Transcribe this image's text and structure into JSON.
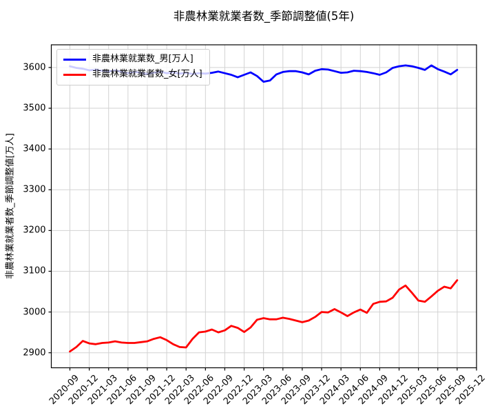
{
  "figure": {
    "background": "#ffffff",
    "grid_color": "#d2d2d2",
    "spine_color": "#000000",
    "legend_border_color": "#cccccc"
  },
  "chart_data": {
    "type": "line",
    "title": "非農林業就業者数_季節調整値(5年)",
    "ylabel": "非農林業就業者数_季節調整値[万人]",
    "xlabel": "",
    "grid": true,
    "legend_position": "upper left",
    "ylim": [
      2863,
      3656
    ],
    "y_ticks": [
      2900,
      3000,
      3100,
      3200,
      3300,
      3400,
      3500,
      3600
    ],
    "x_tick_labels": [
      "2020-09",
      "2020-12",
      "2021-03",
      "2021-06",
      "2021-09",
      "2021-12",
      "2022-03",
      "2022-06",
      "2022-09",
      "2022-12",
      "2023-03",
      "2023-06",
      "2023-09",
      "2023-12",
      "2024-03",
      "2024-06",
      "2024-09",
      "2024-12",
      "2025-03",
      "2025-06",
      "2025-09",
      "2025-12"
    ],
    "x": [
      "2020-09",
      "2020-10",
      "2020-11",
      "2020-12",
      "2021-01",
      "2021-02",
      "2021-03",
      "2021-04",
      "2021-05",
      "2021-06",
      "2021-07",
      "2021-08",
      "2021-09",
      "2021-10",
      "2021-11",
      "2021-12",
      "2022-01",
      "2022-02",
      "2022-03",
      "2022-04",
      "2022-05",
      "2022-06",
      "2022-07",
      "2022-08",
      "2022-09",
      "2022-10",
      "2022-11",
      "2022-12",
      "2023-01",
      "2023-02",
      "2023-03",
      "2023-04",
      "2023-05",
      "2023-06",
      "2023-07",
      "2023-08",
      "2023-09",
      "2023-10",
      "2023-11",
      "2023-12",
      "2024-01",
      "2024-02",
      "2024-03",
      "2024-04",
      "2024-05",
      "2024-06",
      "2024-07",
      "2024-08",
      "2024-09",
      "2024-10",
      "2024-11",
      "2024-12",
      "2025-01",
      "2025-02",
      "2025-03",
      "2025-04",
      "2025-05",
      "2025-06",
      "2025-07",
      "2025-08",
      "2025-09"
    ],
    "series": [
      {
        "name": "非農林業就業数_男[万人]",
        "color": "#0000ff",
        "values": [
          3603,
          3599,
          3597,
          3593,
          3595,
          3592,
          3590,
          3593,
          3589,
          3586,
          3589,
          3587,
          3584,
          3587,
          3590,
          3586,
          3588,
          3585,
          3587,
          3584,
          3586,
          3585,
          3587,
          3590,
          3586,
          3582,
          3576,
          3582,
          3588,
          3579,
          3565,
          3568,
          3583,
          3589,
          3591,
          3591,
          3588,
          3583,
          3592,
          3596,
          3595,
          3591,
          3587,
          3588,
          3592,
          3591,
          3589,
          3586,
          3582,
          3588,
          3599,
          3603,
          3605,
          3603,
          3599,
          3594,
          3605,
          3596,
          3590,
          3583,
          3594
        ]
      },
      {
        "name": "非農林業就業者数_女[万人]",
        "color": "#ff0000",
        "values": [
          2903,
          2914,
          2929,
          2923,
          2921,
          2924,
          2925,
          2928,
          2925,
          2924,
          2924,
          2926,
          2928,
          2934,
          2938,
          2931,
          2921,
          2914,
          2913,
          2934,
          2950,
          2952,
          2957,
          2950,
          2955,
          2966,
          2961,
          2951,
          2962,
          2981,
          2985,
          2982,
          2982,
          2986,
          2983,
          2979,
          2975,
          2979,
          2988,
          3000,
          2999,
          3007,
          2999,
          2990,
          2999,
          3006,
          2998,
          3020,
          3025,
          3026,
          3035,
          3055,
          3065,
          3047,
          3028,
          3025,
          3038,
          3052,
          3062,
          3058,
          3078
        ]
      }
    ]
  }
}
